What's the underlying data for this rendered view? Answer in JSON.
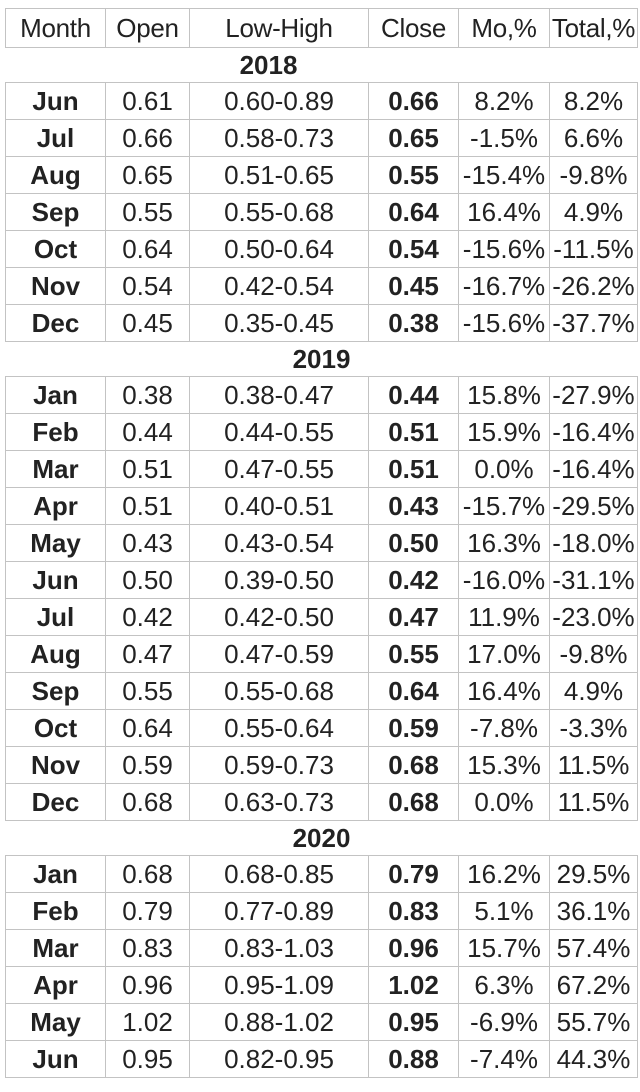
{
  "colors": {
    "background": "#ffffff",
    "grid_border": "#c3c3c3",
    "text": "#222222"
  },
  "chart_data": {
    "type": "table",
    "columns": [
      "Month",
      "Open",
      "Low-High",
      "Close",
      "Mo,%",
      "Total,%"
    ],
    "sections": [
      {
        "year": "2018",
        "rows": [
          {
            "month": "Jun",
            "open": "0.61",
            "low_high": "0.60-0.89",
            "close": "0.66",
            "mo_pct": "8.2%",
            "total_pct": "8.2%"
          },
          {
            "month": "Jul",
            "open": "0.66",
            "low_high": "0.58-0.73",
            "close": "0.65",
            "mo_pct": "-1.5%",
            "total_pct": "6.6%"
          },
          {
            "month": "Aug",
            "open": "0.65",
            "low_high": "0.51-0.65",
            "close": "0.55",
            "mo_pct": "-15.4%",
            "total_pct": "-9.8%"
          },
          {
            "month": "Sep",
            "open": "0.55",
            "low_high": "0.55-0.68",
            "close": "0.64",
            "mo_pct": "16.4%",
            "total_pct": "4.9%"
          },
          {
            "month": "Oct",
            "open": "0.64",
            "low_high": "0.50-0.64",
            "close": "0.54",
            "mo_pct": "-15.6%",
            "total_pct": "-11.5%"
          },
          {
            "month": "Nov",
            "open": "0.54",
            "low_high": "0.42-0.54",
            "close": "0.45",
            "mo_pct": "-16.7%",
            "total_pct": "-26.2%"
          },
          {
            "month": "Dec",
            "open": "0.45",
            "low_high": "0.35-0.45",
            "close": "0.38",
            "mo_pct": "-15.6%",
            "total_pct": "-37.7%"
          }
        ]
      },
      {
        "year": "2019",
        "rows": [
          {
            "month": "Jan",
            "open": "0.38",
            "low_high": "0.38-0.47",
            "close": "0.44",
            "mo_pct": "15.8%",
            "total_pct": "-27.9%"
          },
          {
            "month": "Feb",
            "open": "0.44",
            "low_high": "0.44-0.55",
            "close": "0.51",
            "mo_pct": "15.9%",
            "total_pct": "-16.4%"
          },
          {
            "month": "Mar",
            "open": "0.51",
            "low_high": "0.47-0.55",
            "close": "0.51",
            "mo_pct": "0.0%",
            "total_pct": "-16.4%"
          },
          {
            "month": "Apr",
            "open": "0.51",
            "low_high": "0.40-0.51",
            "close": "0.43",
            "mo_pct": "-15.7%",
            "total_pct": "-29.5%"
          },
          {
            "month": "May",
            "open": "0.43",
            "low_high": "0.43-0.54",
            "close": "0.50",
            "mo_pct": "16.3%",
            "total_pct": "-18.0%"
          },
          {
            "month": "Jun",
            "open": "0.50",
            "low_high": "0.39-0.50",
            "close": "0.42",
            "mo_pct": "-16.0%",
            "total_pct": "-31.1%"
          },
          {
            "month": "Jul",
            "open": "0.42",
            "low_high": "0.42-0.50",
            "close": "0.47",
            "mo_pct": "11.9%",
            "total_pct": "-23.0%"
          },
          {
            "month": "Aug",
            "open": "0.47",
            "low_high": "0.47-0.59",
            "close": "0.55",
            "mo_pct": "17.0%",
            "total_pct": "-9.8%"
          },
          {
            "month": "Sep",
            "open": "0.55",
            "low_high": "0.55-0.68",
            "close": "0.64",
            "mo_pct": "16.4%",
            "total_pct": "4.9%"
          },
          {
            "month": "Oct",
            "open": "0.64",
            "low_high": "0.55-0.64",
            "close": "0.59",
            "mo_pct": "-7.8%",
            "total_pct": "-3.3%"
          },
          {
            "month": "Nov",
            "open": "0.59",
            "low_high": "0.59-0.73",
            "close": "0.68",
            "mo_pct": "15.3%",
            "total_pct": "11.5%"
          },
          {
            "month": "Dec",
            "open": "0.68",
            "low_high": "0.63-0.73",
            "close": "0.68",
            "mo_pct": "0.0%",
            "total_pct": "11.5%"
          }
        ]
      },
      {
        "year": "2020",
        "rows": [
          {
            "month": "Jan",
            "open": "0.68",
            "low_high": "0.68-0.85",
            "close": "0.79",
            "mo_pct": "16.2%",
            "total_pct": "29.5%"
          },
          {
            "month": "Feb",
            "open": "0.79",
            "low_high": "0.77-0.89",
            "close": "0.83",
            "mo_pct": "5.1%",
            "total_pct": "36.1%"
          },
          {
            "month": "Mar",
            "open": "0.83",
            "low_high": "0.83-1.03",
            "close": "0.96",
            "mo_pct": "15.7%",
            "total_pct": "57.4%"
          },
          {
            "month": "Apr",
            "open": "0.96",
            "low_high": "0.95-1.09",
            "close": "1.02",
            "mo_pct": "6.3%",
            "total_pct": "67.2%"
          },
          {
            "month": "May",
            "open": "1.02",
            "low_high": "0.88-1.02",
            "close": "0.95",
            "mo_pct": "-6.9%",
            "total_pct": "55.7%"
          },
          {
            "month": "Jun",
            "open": "0.95",
            "low_high": "0.82-0.95",
            "close": "0.88",
            "mo_pct": "-7.4%",
            "total_pct": "44.3%"
          }
        ]
      }
    ]
  }
}
